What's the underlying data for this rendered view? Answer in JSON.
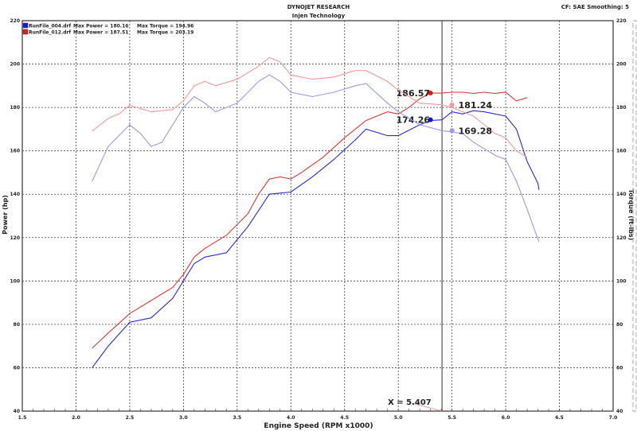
{
  "header": {
    "title": "DYNOJET RESEARCH",
    "subtitle": "Injen Technology",
    "settings": "CF: SAE  Smoothing: 5"
  },
  "chart_data": {
    "type": "line",
    "xlabel": "Engine Speed (RPM x1000)",
    "ylabel": "Power (hp)",
    "y2label": "Torque (ft-lbs)",
    "xlim": [
      1.5,
      7.0
    ],
    "ylim": [
      40,
      220
    ],
    "y2lim": [
      40,
      220
    ],
    "grid": true,
    "legend_placement": "top-left",
    "xticks": [
      "1.5",
      "2.0",
      "2.5",
      "3.0",
      "3.5",
      "4.0",
      "4.5",
      "5.0",
      "5.5",
      "6.0",
      "6.5",
      "7.0"
    ],
    "yticks": [
      "40",
      "60",
      "80",
      "100",
      "120",
      "140",
      "160",
      "180",
      "200",
      "220"
    ],
    "legend": [
      {
        "file": "RunFile_004.drf",
        "power": "Max Power = 180.16",
        "torque": "Max Torque = 194.96",
        "color": "#1a1adb"
      },
      {
        "file": "RunFile_012.drf",
        "power": "Max Power = 187.51",
        "torque": "Max Torque = 203.19",
        "color": "#e02020"
      }
    ],
    "cursor": {
      "x": 5.407,
      "label": "X = 5.407"
    },
    "series": [
      {
        "run": "RunFile_012.drf",
        "kind": "power",
        "color": "#d83a3a",
        "cursor_value": "186.57",
        "x": [
          2.15,
          2.3,
          2.5,
          2.7,
          2.9,
          3.0,
          3.1,
          3.2,
          3.4,
          3.6,
          3.7,
          3.8,
          3.9,
          4.0,
          4.1,
          4.3,
          4.5,
          4.7,
          4.9,
          5.0,
          5.1,
          5.2,
          5.3,
          5.4,
          5.5,
          5.6,
          5.7,
          5.8,
          5.9,
          6.0,
          6.1,
          6.2
        ],
        "y": [
          69,
          76,
          85,
          91,
          97,
          103,
          111,
          115,
          121,
          131,
          140,
          147,
          148,
          147,
          150,
          157,
          166,
          174,
          178,
          177,
          180,
          184,
          186.6,
          186.6,
          187,
          187,
          186.5,
          187,
          186.5,
          187,
          183,
          184.5
        ]
      },
      {
        "run": "RunFile_004.drf",
        "kind": "power",
        "color": "#2a2acc",
        "cursor_value": "174.26",
        "x": [
          2.15,
          2.3,
          2.5,
          2.7,
          2.9,
          3.0,
          3.1,
          3.2,
          3.4,
          3.6,
          3.8,
          4.0,
          4.2,
          4.4,
          4.6,
          4.7,
          4.9,
          5.0,
          5.2,
          5.3,
          5.407,
          5.5,
          5.6,
          5.7,
          5.8,
          5.9,
          6.0,
          6.1,
          6.2,
          6.3,
          6.31
        ],
        "y": [
          60,
          70,
          81,
          83,
          92,
          100,
          108,
          111,
          113,
          125,
          140,
          141,
          148,
          156,
          165,
          170,
          167,
          167,
          172,
          174,
          174.3,
          178,
          177,
          178.5,
          178,
          177,
          176,
          170,
          155,
          145,
          142
        ]
      },
      {
        "run": "RunFile_012.drf",
        "kind": "torque",
        "color": "#f09a9a",
        "cursor_value": "181.24",
        "x": [
          2.15,
          2.3,
          2.4,
          2.5,
          2.7,
          2.9,
          3.0,
          3.1,
          3.2,
          3.3,
          3.5,
          3.7,
          3.8,
          3.9,
          4.0,
          4.2,
          4.4,
          4.6,
          4.7,
          4.9,
          5.0,
          5.2,
          5.407,
          5.5,
          5.7,
          5.9,
          6.0,
          6.1,
          6.2
        ],
        "y": [
          169,
          175,
          177,
          181,
          178,
          179,
          183,
          190,
          192,
          190,
          193,
          199,
          203,
          201,
          195,
          193,
          194,
          197,
          197,
          192,
          188,
          182,
          181.2,
          180,
          176,
          168,
          166,
          160,
          157
        ]
      },
      {
        "run": "RunFile_004.drf",
        "kind": "torque",
        "color": "#9a9ae8",
        "cursor_value": "169.28",
        "x": [
          2.15,
          2.3,
          2.5,
          2.6,
          2.7,
          2.8,
          3.0,
          3.1,
          3.2,
          3.3,
          3.5,
          3.7,
          3.8,
          3.9,
          4.0,
          4.2,
          4.4,
          4.6,
          4.7,
          4.9,
          5.0,
          5.2,
          5.407,
          5.6,
          5.7,
          5.9,
          6.0,
          6.1,
          6.2,
          6.31
        ],
        "y": [
          146,
          162,
          172,
          168,
          162,
          164,
          180,
          185,
          182,
          178,
          182,
          192,
          195,
          192,
          187,
          185,
          187,
          190,
          191,
          182,
          178,
          172,
          169.3,
          168,
          164,
          158,
          156,
          146,
          133,
          118
        ]
      }
    ]
  }
}
